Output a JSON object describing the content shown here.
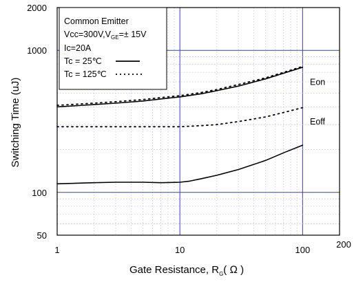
{
  "chart_data": {
    "type": "line",
    "xscale": "log",
    "yscale": "log",
    "xlim": [
      1,
      200
    ],
    "ylim": [
      50,
      2000
    ],
    "xticks": [
      "1",
      "10",
      "100",
      "200"
    ],
    "yticks": [
      "50",
      "100",
      "1000",
      "2000"
    ],
    "xlabel": {
      "main": "Gate Resistance, R",
      "sub": "G",
      "rest": "( Ω )"
    },
    "ylabel": "Switching Time (uJ)",
    "legend": {
      "placement": "top-left",
      "lines": [
        "Common Emitter",
        "Ic=20A"
      ],
      "vcc": {
        "pre": "Vcc=300V,V",
        "sub": "GE",
        "post": "=±  15V"
      },
      "entries": [
        {
          "label": "Tc =  25℃",
          "style": "solid"
        },
        {
          "label": "Tc = 125℃",
          "style": "dotted"
        }
      ]
    },
    "series": [
      {
        "name": "Eon",
        "style": "solid",
        "x": [
          1,
          2,
          3,
          5,
          7,
          10,
          15,
          20,
          30,
          50,
          70,
          100
        ],
        "y": [
          400,
          415,
          425,
          440,
          455,
          470,
          495,
          520,
          560,
          630,
          690,
          760
        ]
      },
      {
        "name": "Eon",
        "style": "dotted",
        "x": [
          1,
          2,
          3,
          5,
          7,
          10,
          15,
          20,
          30,
          50,
          70,
          100
        ],
        "y": [
          410,
          425,
          435,
          450,
          465,
          480,
          505,
          530,
          575,
          640,
          700,
          770
        ]
      },
      {
        "name": "Eoff",
        "style": "dotted",
        "x": [
          1,
          2,
          3,
          5,
          7,
          10,
          15,
          20,
          30,
          50,
          70,
          100
        ],
        "y": [
          290,
          290,
          290,
          290,
          290,
          290,
          295,
          300,
          315,
          340,
          365,
          395
        ]
      },
      {
        "name": "Eoff",
        "style": "solid",
        "x": [
          1,
          2,
          3,
          5,
          7,
          10,
          12,
          15,
          20,
          30,
          50,
          70,
          100
        ],
        "y": [
          115,
          117,
          118,
          118,
          117,
          118,
          120,
          125,
          132,
          145,
          168,
          190,
          215
        ]
      }
    ],
    "curve_labels": [
      "Eon",
      "Eoff"
    ]
  }
}
